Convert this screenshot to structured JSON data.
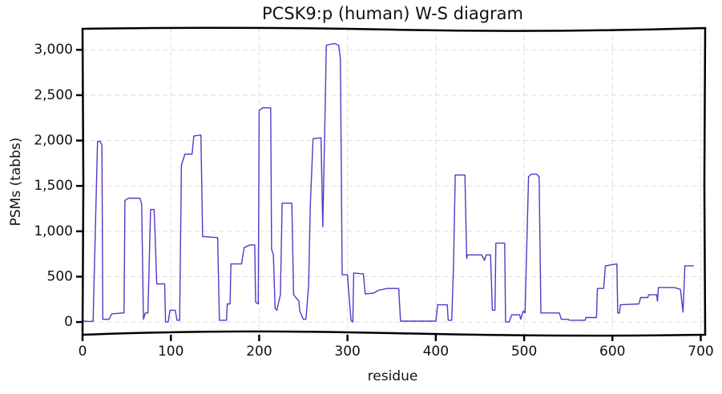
{
  "chart_data": {
    "type": "line",
    "title": "PCSK9:p (human) W-S diagram",
    "x_label": "residue",
    "y_label": "PSMs (tabbs)",
    "color": "#5b35c6",
    "grid": true,
    "xlim": [
      0,
      705
    ],
    "ylim": [
      -140,
      3240
    ],
    "xticks": [
      0,
      100,
      200,
      300,
      400,
      500,
      600,
      700
    ],
    "yticks": [
      0,
      500,
      {
        "value": 1000,
        "label": "1,000"
      },
      {
        "value": 1500,
        "label": "1,500"
      },
      {
        "value": 2000,
        "label": "2,000"
      },
      {
        "value": 2500,
        "label": "2,500"
      },
      {
        "value": 3000,
        "label": "3,000"
      }
    ],
    "x": [
      1,
      8,
      12,
      17,
      20,
      22,
      23,
      30,
      33,
      45,
      47,
      48,
      52,
      65,
      67,
      69,
      71,
      74,
      77,
      81,
      82,
      84,
      93,
      94,
      97,
      99,
      105,
      107,
      110,
      112,
      116,
      124,
      126,
      134,
      136,
      140,
      153,
      155,
      163,
      164,
      167,
      168,
      180,
      183,
      190,
      195,
      196,
      199,
      200,
      204,
      213,
      214,
      216,
      218,
      220,
      224,
      226,
      237,
      239,
      245,
      246,
      250,
      253,
      256,
      258,
      261,
      270,
      272,
      275,
      276,
      285,
      290,
      292,
      294,
      300,
      304,
      306,
      307,
      318,
      320,
      330,
      335,
      345,
      358,
      360,
      400,
      402,
      413,
      414,
      418,
      420,
      422,
      433,
      435,
      436,
      452,
      455,
      457,
      462,
      464,
      467,
      468,
      478,
      479,
      483,
      486,
      495,
      496,
      499,
      501,
      505,
      508,
      514,
      517,
      519,
      540,
      542,
      550,
      551,
      569,
      570,
      582,
      583,
      590,
      592,
      605,
      606,
      608,
      609,
      630,
      632,
      640,
      641,
      650,
      651,
      652,
      670,
      677,
      680,
      682,
      692
    ],
    "values": [
      10,
      5,
      10,
      1990,
      1990,
      1950,
      30,
      30,
      90,
      100,
      100,
      1340,
      1365,
      1365,
      1300,
      30,
      100,
      100,
      1240,
      1240,
      1000,
      420,
      420,
      0,
      0,
      130,
      130,
      20,
      20,
      1730,
      1850,
      1850,
      2050,
      2060,
      940,
      940,
      930,
      20,
      20,
      200,
      200,
      640,
      640,
      820,
      850,
      850,
      220,
      200,
      2330,
      2360,
      2360,
      800,
      750,
      150,
      130,
      300,
      1310,
      1310,
      300,
      230,
      120,
      30,
      30,
      400,
      1300,
      2020,
      2030,
      1050,
      2500,
      3050,
      3070,
      3050,
      2900,
      520,
      520,
      20,
      0,
      540,
      530,
      310,
      320,
      350,
      370,
      370,
      10,
      10,
      190,
      190,
      20,
      20,
      600,
      1620,
      1620,
      700,
      740,
      740,
      680,
      740,
      740,
      130,
      130,
      870,
      870,
      0,
      0,
      80,
      80,
      30,
      120,
      100,
      1600,
      1630,
      1630,
      1600,
      100,
      100,
      30,
      30,
      20,
      20,
      50,
      50,
      370,
      370,
      620,
      640,
      100,
      100,
      190,
      200,
      270,
      270,
      300,
      300,
      230,
      380,
      380,
      360,
      110,
      620,
      620
    ]
  }
}
